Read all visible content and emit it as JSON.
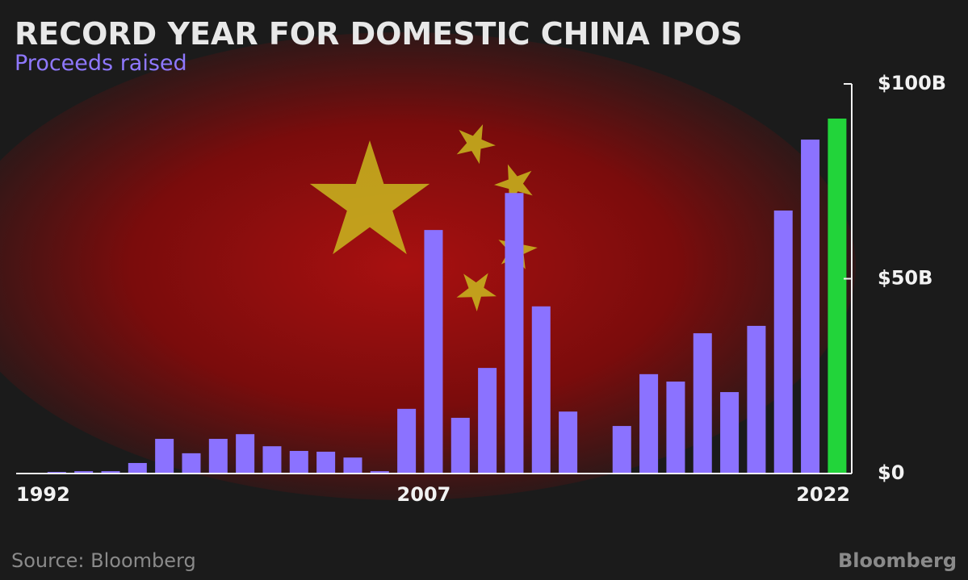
{
  "chart_data": {
    "type": "bar",
    "title": "RECORD YEAR FOR DOMESTIC CHINA IPOS",
    "subtitle": "Proceeds raised",
    "source": "Source: Bloomberg",
    "brand": "Bloomberg",
    "categories": [
      "1992",
      null,
      null,
      null,
      null,
      null,
      null,
      null,
      null,
      null,
      null,
      null,
      null,
      null,
      null,
      "2007",
      null,
      null,
      null,
      null,
      null,
      null,
      null,
      null,
      null,
      null,
      null,
      null,
      null,
      null,
      "2022"
    ],
    "values": [
      0.2,
      0.4,
      0.6,
      0.6,
      2.7,
      8.9,
      5.2,
      8.9,
      10.1,
      7.0,
      5.8,
      5.6,
      4.1,
      0.6,
      16.6,
      62.5,
      14.3,
      27.1,
      72.0,
      42.9,
      15.9,
      0,
      12.2,
      25.5,
      23.6,
      36.0,
      20.9,
      37.9,
      67.5,
      85.7,
      91.1
    ],
    "colors": [
      "#8b72ff",
      "#8b72ff",
      "#8b72ff",
      "#8b72ff",
      "#8b72ff",
      "#8b72ff",
      "#8b72ff",
      "#8b72ff",
      "#8b72ff",
      "#8b72ff",
      "#8b72ff",
      "#8b72ff",
      "#8b72ff",
      "#8b72ff",
      "#8b72ff",
      "#8b72ff",
      "#8b72ff",
      "#8b72ff",
      "#8b72ff",
      "#8b72ff",
      "#8b72ff",
      "#8b72ff",
      "#8b72ff",
      "#8b72ff",
      "#8b72ff",
      "#8b72ff",
      "#8b72ff",
      "#8b72ff",
      "#8b72ff",
      "#8b72ff",
      "#22d43a"
    ],
    "ylim": [
      0,
      100
    ],
    "yticks": [
      {
        "value": 0,
        "label": "$0"
      },
      {
        "value": 50,
        "label": "$50B"
      },
      {
        "value": 100,
        "label": "$100B"
      }
    ],
    "y_axis_side": "right"
  }
}
